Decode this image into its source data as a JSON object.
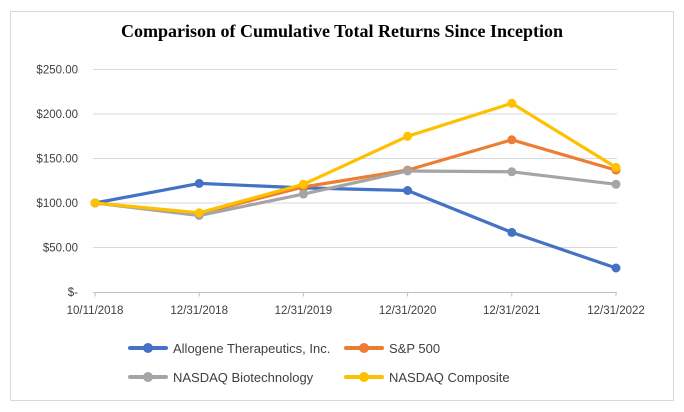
{
  "chart_data": {
    "type": "line",
    "title": "Comparison of Cumulative Total Returns Since Inception",
    "categories": [
      "10/11/2018",
      "12/31/2018",
      "12/31/2019",
      "12/31/2020",
      "12/31/2021",
      "12/31/2022"
    ],
    "series": [
      {
        "name": "Allogene Therapeutics, Inc.",
        "color": "#4472C4",
        "values": [
          100,
          122,
          117,
          114,
          67,
          27
        ]
      },
      {
        "name": "S&P 500",
        "color": "#ED7D31",
        "values": [
          100,
          88,
          118,
          137,
          171,
          137
        ]
      },
      {
        "name": "NASDAQ Biotechnology",
        "color": "#A5A5A5",
        "values": [
          100,
          86,
          110,
          136,
          135,
          121
        ]
      },
      {
        "name": "NASDAQ Composite",
        "color": "#FFC000",
        "values": [
          100,
          89,
          121,
          175,
          212,
          140
        ]
      }
    ],
    "y_axis": {
      "min": 0,
      "max": 250,
      "step": 50,
      "tick_labels": [
        "$-",
        "$50.00",
        "$100.00",
        "$150.00",
        "$200.00",
        "$250.00"
      ]
    },
    "marker": "circle",
    "grid": true,
    "legend_position": "bottom",
    "axis_color": "#BFBFBF",
    "gridline_color": "#D9D9D9"
  }
}
